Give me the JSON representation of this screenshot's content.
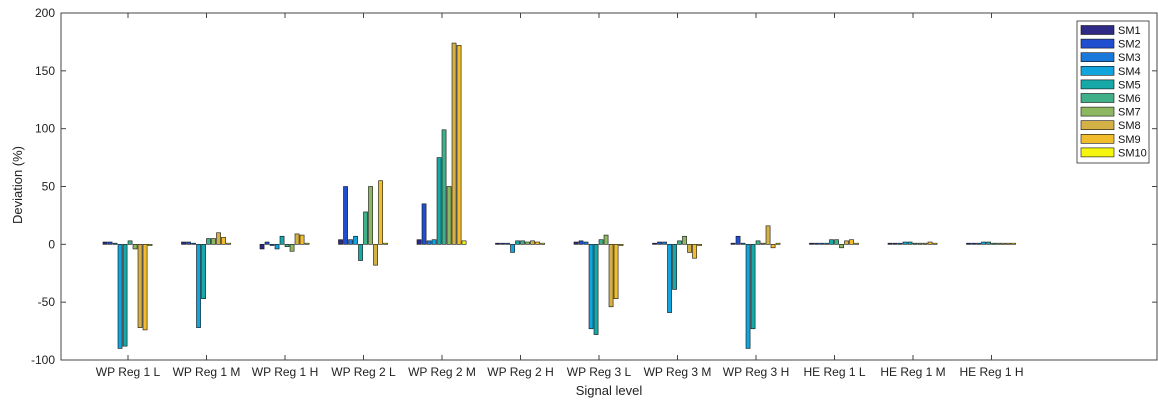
{
  "chart_data": {
    "type": "bar",
    "xlabel": "Signal level",
    "ylabel": "Deviation (%)",
    "ylim": [
      -100,
      200
    ],
    "yticks": [
      -100,
      -50,
      0,
      50,
      100,
      150,
      200
    ],
    "grid": false,
    "legend_position": "top-right",
    "categories": [
      "WP Reg 1 L",
      "WP Reg 1 M",
      "WP Reg 1 H",
      "WP Reg 2 L",
      "WP Reg 2 M",
      "WP Reg 2 H",
      "WP Reg 3 L",
      "WP Reg 3 M",
      "WP Reg 3 H",
      "HE Reg 1 L",
      "HE Reg 1 M",
      "HE Reg 1 H"
    ],
    "series": [
      {
        "name": "SM1",
        "color": "#2e2a86",
        "values": [
          2,
          2,
          -4,
          4,
          4,
          1,
          2,
          1,
          1,
          1,
          1,
          1
        ]
      },
      {
        "name": "SM2",
        "color": "#1f4fd0",
        "values": [
          2,
          2,
          2,
          50,
          35,
          1,
          3,
          2,
          7,
          1,
          1,
          1
        ]
      },
      {
        "name": "SM3",
        "color": "#1a78db",
        "values": [
          1,
          1,
          -1,
          4,
          3,
          1,
          2,
          2,
          1,
          1,
          1,
          1
        ]
      },
      {
        "name": "SM4",
        "color": "#11a4dd",
        "values": [
          -90,
          -72,
          -4,
          7,
          4,
          -7,
          -73,
          -59,
          -90,
          1,
          2,
          2
        ]
      },
      {
        "name": "SM5",
        "color": "#17a9a8",
        "values": [
          -88,
          -47,
          7,
          -14,
          75,
          3,
          -78,
          -39,
          -73,
          4,
          2,
          2
        ]
      },
      {
        "name": "SM6",
        "color": "#40b089",
        "values": [
          3,
          5,
          -2,
          28,
          99,
          3,
          4,
          3,
          3,
          4,
          1,
          1
        ]
      },
      {
        "name": "SM7",
        "color": "#8db861",
        "values": [
          -4,
          5,
          -6,
          50,
          50,
          2,
          8,
          7,
          1,
          -3,
          1,
          1
        ]
      },
      {
        "name": "SM8",
        "color": "#d4b146",
        "values": [
          -72,
          10,
          9,
          -18,
          174,
          3,
          -54,
          -7,
          16,
          3,
          1,
          1
        ]
      },
      {
        "name": "SM9",
        "color": "#f2bd2d",
        "values": [
          -74,
          6,
          8,
          55,
          172,
          2,
          -47,
          -12,
          -3,
          4,
          2,
          1
        ]
      },
      {
        "name": "SM10",
        "color": "#f6f50f",
        "values": [
          -1,
          1,
          1,
          1,
          3,
          1,
          -1,
          -1,
          1,
          1,
          1,
          1
        ]
      }
    ]
  }
}
